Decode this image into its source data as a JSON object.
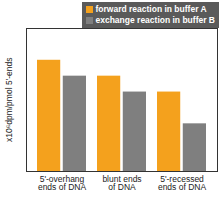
{
  "chart_data": {
    "type": "bar",
    "y_label": "x10⁶dpm/pmol 5'-ends",
    "categories": [
      "5'-overhang\nends of DNA",
      "blunt ends\nof DNA",
      "5'-recessed\nends of DNA"
    ],
    "series": [
      {
        "name": "forward reaction in buffer A",
        "color": "#f4a11d",
        "values": [
          7,
          6,
          5
        ]
      },
      {
        "name": "exchange reaction in buffer B",
        "color": "#7f7f7f",
        "values": [
          6,
          5,
          3
        ]
      }
    ],
    "ylim": [
      0,
      9
    ],
    "yticks": [],
    "tick_labels": "x",
    "legend": "top-right",
    "grid": false
  }
}
